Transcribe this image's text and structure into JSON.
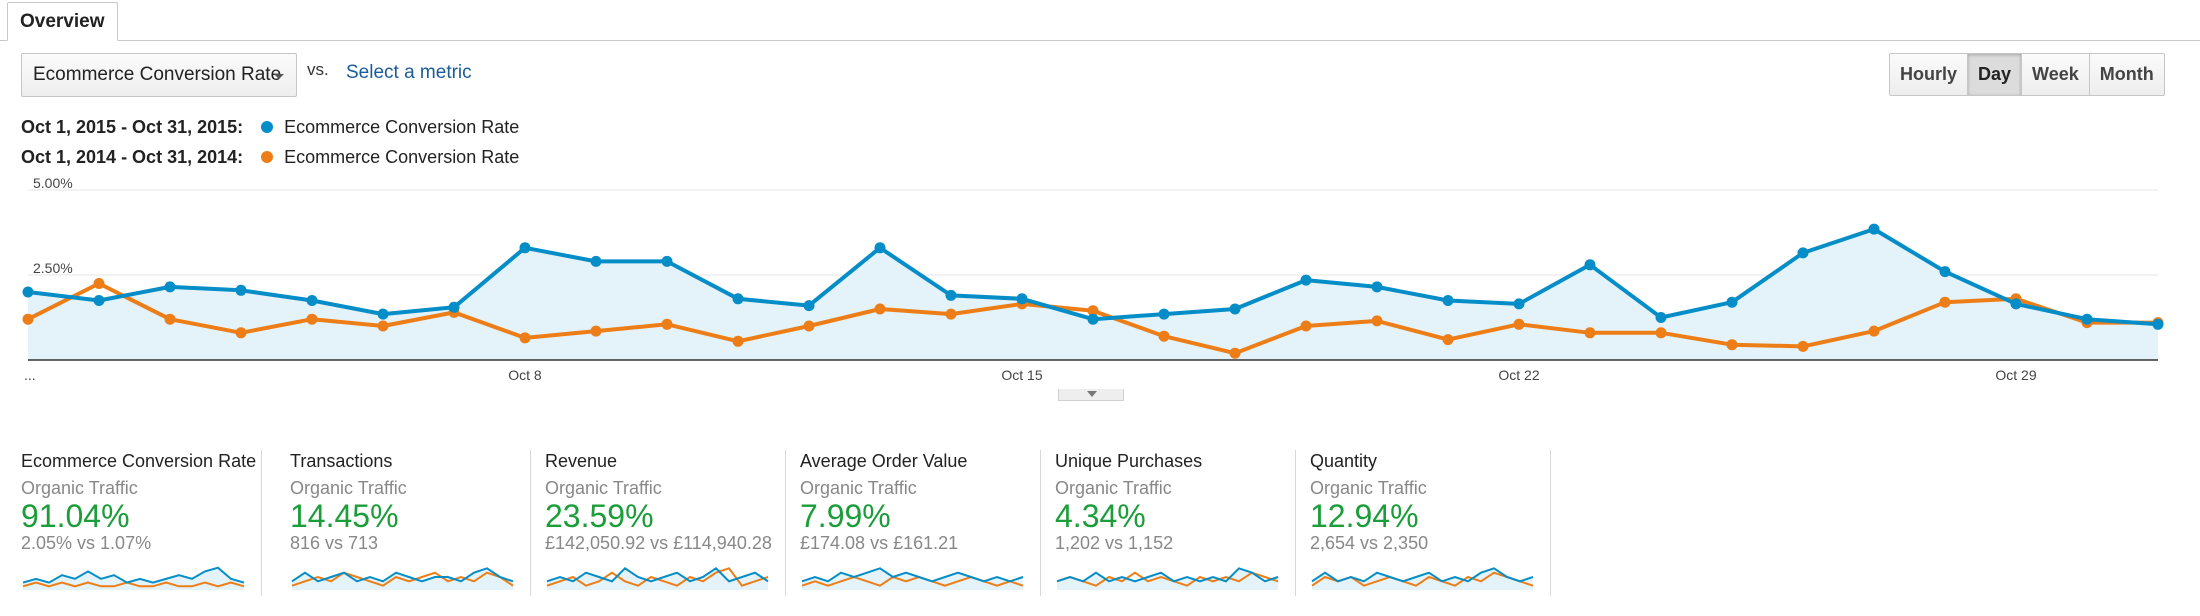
{
  "tabs": [
    {
      "label": "Overview"
    }
  ],
  "metric_picker": {
    "selected": "Ecommerce Conversion Rate",
    "vs_label": "vs.",
    "secondary_link": "Select a metric"
  },
  "period_buttons": [
    {
      "label": "Hourly",
      "active": false
    },
    {
      "label": "Day",
      "active": true
    },
    {
      "label": "Week",
      "active": false
    },
    {
      "label": "Month",
      "active": false
    }
  ],
  "legend": [
    {
      "range": "Oct 1, 2015 - Oct 31, 2015:",
      "name": "Ecommerce Conversion Rate",
      "color": "#058dc7"
    },
    {
      "range": "Oct 1, 2014 - Oct 31, 2014:",
      "name": "Ecommerce Conversion Rate",
      "color": "#ed7e17"
    }
  ],
  "chart_data": {
    "type": "line",
    "x": [
      1,
      2,
      3,
      4,
      5,
      6,
      7,
      8,
      9,
      10,
      11,
      12,
      13,
      14,
      15,
      16,
      17,
      18,
      19,
      20,
      21,
      22,
      23,
      24,
      25,
      26,
      27,
      28,
      29,
      30,
      31
    ],
    "x_tick_labels": [
      {
        "x": 1,
        "label": "..."
      },
      {
        "x": 8,
        "label": "Oct 8"
      },
      {
        "x": 15,
        "label": "Oct 15"
      },
      {
        "x": 22,
        "label": "Oct 22"
      },
      {
        "x": 29,
        "label": "Oct 29"
      }
    ],
    "y_tick_labels": [
      {
        "y": 5.0,
        "label": "5.00%"
      },
      {
        "y": 2.5,
        "label": "2.50%"
      }
    ],
    "ylim": [
      0,
      5
    ],
    "area_fill": "#e4f2f9",
    "grid": true,
    "series": [
      {
        "values": [
          2.0,
          1.75,
          2.15,
          2.05,
          1.75,
          1.35,
          1.55,
          3.3,
          2.9,
          2.9,
          1.8,
          1.6,
          3.3,
          1.9,
          1.8,
          1.2,
          1.35,
          1.5,
          2.35,
          2.15,
          1.75,
          1.65,
          2.8,
          1.25,
          1.7,
          3.15,
          3.85,
          2.6,
          1.65,
          1.2,
          1.05
        ],
        "color": "#058dc7"
      },
      {
        "values": [
          1.2,
          2.25,
          1.2,
          0.8,
          1.2,
          1.0,
          1.4,
          0.65,
          0.85,
          1.05,
          0.55,
          1.0,
          1.5,
          1.35,
          1.65,
          1.45,
          0.7,
          0.2,
          1.0,
          1.15,
          0.6,
          1.05,
          0.8,
          0.8,
          0.45,
          0.4,
          0.85,
          1.7,
          1.8,
          1.1,
          1.1
        ],
        "color": "#ed7e17"
      }
    ]
  },
  "tiles": [
    {
      "title": "Ecommerce Conversion Rate",
      "segment": "Organic Traffic",
      "pct": "91.04%",
      "compare": "2.05% vs 1.07%",
      "spark_a": [
        3,
        4,
        3,
        5,
        4,
        6,
        4,
        5,
        3,
        4,
        3,
        4,
        5,
        4,
        6,
        7,
        4,
        3
      ],
      "spark_b": [
        2,
        3,
        2,
        3,
        2,
        3,
        2,
        2,
        3,
        2,
        2,
        3,
        2,
        2,
        3,
        2,
        3,
        2
      ]
    },
    {
      "title": "Transactions",
      "segment": "Organic Traffic",
      "pct": "14.45%",
      "compare": "816 vs 713",
      "spark_a": [
        4,
        6,
        4,
        5,
        6,
        4,
        5,
        4,
        6,
        5,
        4,
        5,
        5,
        4,
        6,
        7,
        5,
        4
      ],
      "spark_b": [
        3,
        4,
        5,
        4,
        6,
        5,
        4,
        3,
        5,
        4,
        5,
        6,
        4,
        5,
        4,
        6,
        5,
        3
      ]
    },
    {
      "title": "Revenue",
      "segment": "Organic Traffic",
      "pct": "23.59%",
      "compare": "£142,050.92 vs £114,940.28",
      "spark_a": [
        4,
        5,
        4,
        6,
        5,
        4,
        7,
        5,
        4,
        5,
        6,
        4,
        5,
        7,
        4,
        5,
        6,
        4
      ],
      "spark_b": [
        3,
        4,
        5,
        3,
        4,
        6,
        4,
        3,
        5,
        4,
        3,
        5,
        4,
        6,
        7,
        3,
        4,
        5
      ]
    },
    {
      "title": "Average Order Value",
      "segment": "Organic Traffic",
      "pct": "7.99%",
      "compare": "£174.08 vs £161.21",
      "spark_a": [
        4,
        5,
        4,
        6,
        5,
        6,
        7,
        5,
        6,
        5,
        4,
        5,
        6,
        5,
        4,
        5,
        4,
        5
      ],
      "spark_b": [
        3,
        4,
        3,
        4,
        5,
        4,
        3,
        5,
        4,
        5,
        4,
        3,
        4,
        5,
        4,
        3,
        4,
        3
      ]
    },
    {
      "title": "Unique Purchases",
      "segment": "Organic Traffic",
      "pct": "4.34%",
      "compare": "1,202 vs 1,152",
      "spark_a": [
        4,
        5,
        4,
        6,
        4,
        5,
        4,
        5,
        6,
        4,
        5,
        4,
        5,
        4,
        7,
        6,
        4,
        5
      ],
      "spark_b": [
        4,
        5,
        4,
        3,
        5,
        4,
        6,
        4,
        5,
        4,
        3,
        5,
        4,
        5,
        4,
        6,
        5,
        4
      ]
    },
    {
      "title": "Quantity",
      "segment": "Organic Traffic",
      "pct": "12.94%",
      "compare": "2,654 vs 2,350",
      "spark_a": [
        4,
        6,
        4,
        5,
        4,
        6,
        5,
        4,
        5,
        6,
        4,
        5,
        4,
        6,
        7,
        5,
        4,
        5
      ],
      "spark_b": [
        3,
        5,
        4,
        5,
        3,
        4,
        5,
        4,
        3,
        5,
        4,
        3,
        5,
        4,
        6,
        5,
        4,
        3
      ]
    }
  ]
}
